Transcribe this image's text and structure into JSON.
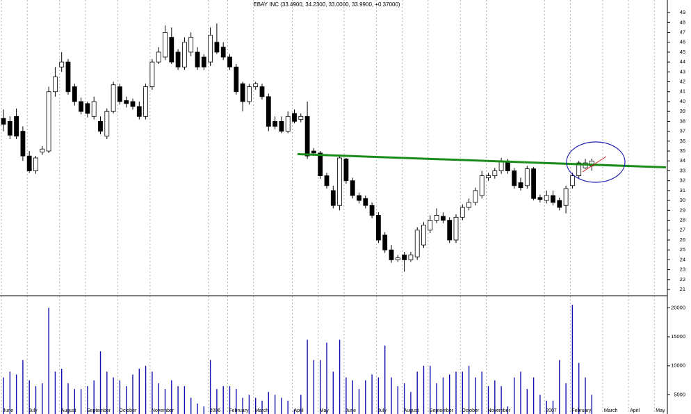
{
  "chart_data": [
    {
      "type": "candlestick",
      "title": "EBAY INC (33.4900, 34.2300, 33.0000, 33.9900, +0.37000)",
      "categories": [
        "June",
        null,
        null,
        null,
        "July",
        null,
        null,
        null,
        null,
        "August",
        null,
        null,
        null,
        "September",
        null,
        null,
        null,
        null,
        "October",
        null,
        null,
        null,
        null,
        "November",
        null,
        null,
        null,
        null,
        null,
        null,
        null,
        null,
        "2006",
        null,
        null,
        "February",
        null,
        null,
        null,
        "March",
        null,
        null,
        null,
        null,
        null,
        "April",
        null,
        null,
        null,
        "May",
        null,
        null,
        null,
        "June",
        null,
        null,
        null,
        null,
        "July",
        null,
        null,
        null,
        "August",
        null,
        null,
        null,
        "September",
        null,
        null,
        null,
        null,
        "October",
        null,
        null,
        null,
        "November",
        null,
        null,
        null,
        null,
        null,
        null,
        null,
        null,
        "2007",
        null,
        null,
        null,
        "February",
        null,
        null,
        null,
        null,
        "March",
        null,
        null,
        null,
        "April",
        null,
        null,
        null,
        "May"
      ],
      "open": [
        38.3,
        38,
        38.5,
        37,
        34.5,
        33,
        34.9,
        35,
        41,
        43.5,
        44,
        41.5,
        40,
        39.8,
        38.5,
        38,
        36.5,
        39,
        41.5,
        40.1,
        40,
        39.5,
        38.5,
        41.5,
        44,
        44.5,
        46.5,
        45,
        43.5,
        45,
        45,
        44.5,
        44,
        46,
        45.5,
        44.5,
        43.5,
        41.8,
        40,
        41.5,
        41.5,
        40.5,
        38,
        38,
        37,
        38.8,
        38.2,
        38.5,
        35,
        34.8,
        32.5,
        31,
        29.5,
        34.2,
        32,
        30.5,
        30.2,
        29.5,
        28.5,
        26.5,
        25,
        24,
        24.5,
        24,
        24.3,
        25.5,
        27,
        28,
        28.4,
        28,
        26,
        28.3,
        29.3,
        29.8,
        30.5,
        32.3,
        32.5,
        33,
        34,
        33,
        31.8,
        31.5,
        33.2,
        30.3,
        30,
        30.5,
        30,
        29.5,
        31.5,
        32.5,
        33.3,
        33.49,
        null,
        null,
        null,
        null,
        null,
        null,
        null,
        null,
        null,
        null
      ],
      "high": [
        39.2,
        38.5,
        39.3,
        37.5,
        35,
        34.5,
        35.5,
        41.5,
        43.5,
        45,
        44.3,
        41.8,
        40.4,
        40,
        40.5,
        38.5,
        39.3,
        42,
        41.8,
        40.5,
        40.3,
        40,
        41.8,
        44.3,
        45.5,
        47.7,
        47.5,
        45.3,
        46.5,
        47,
        45.5,
        44.8,
        47.5,
        47.9,
        46,
        44.8,
        43.8,
        42,
        41.8,
        42,
        41.8,
        40.8,
        38.5,
        38.5,
        39,
        39.2,
        38.8,
        40,
        35.3,
        35,
        32.8,
        31.5,
        34.5,
        34.3,
        32.3,
        30.8,
        30.5,
        29.8,
        28.8,
        26.8,
        25.5,
        24.5,
        24.8,
        24.8,
        27.3,
        27.8,
        28.5,
        29.2,
        28.8,
        28.3,
        28.6,
        29.6,
        30.2,
        31.3,
        33,
        32.8,
        33.3,
        34.3,
        34.2,
        33.3,
        32.3,
        33.5,
        33.4,
        30.6,
        31,
        31,
        30.3,
        31.5,
        32.8,
        34,
        34.2,
        34.23,
        null,
        null,
        null,
        null,
        null,
        null,
        null,
        null,
        null,
        null
      ],
      "low": [
        37,
        36.2,
        36.2,
        34,
        32.8,
        32.7,
        34.6,
        34.8,
        40.5,
        43,
        40.7,
        39.6,
        38.7,
        38.4,
        38.2,
        36.7,
        36.2,
        38.8,
        39.7,
        39.4,
        39.2,
        38.2,
        38.2,
        41.2,
        43.8,
        44.2,
        43.8,
        43.2,
        43.2,
        44.6,
        43.2,
        43.2,
        43.6,
        44.8,
        44.2,
        43.2,
        40.7,
        39,
        39.7,
        41.2,
        40.2,
        37,
        37.2,
        36.8,
        36.8,
        37.8,
        37.9,
        34.2,
        34.5,
        32.2,
        31.2,
        29.2,
        29,
        31.7,
        30.2,
        29.7,
        29.2,
        28.2,
        25.7,
        24.7,
        23.7,
        23.8,
        22.8,
        23.8,
        24,
        25.2,
        26.7,
        27.7,
        27.7,
        25.7,
        25.7,
        28,
        29,
        29.5,
        30.2,
        32,
        32.2,
        32.7,
        32.7,
        31.2,
        31,
        31.2,
        30,
        29.8,
        29.7,
        29.5,
        29,
        28.7,
        31.2,
        32.2,
        33.2,
        33,
        null,
        null,
        null,
        null,
        null,
        null,
        null,
        null,
        null,
        null
      ],
      "close": [
        37.7,
        36.6,
        36.5,
        34.5,
        33,
        34.3,
        35.2,
        41,
        42.5,
        44,
        41,
        40,
        39,
        38.8,
        40,
        37,
        39,
        41.7,
        40,
        39.8,
        39.5,
        38.5,
        41.5,
        44,
        45,
        47,
        44,
        43.5,
        46,
        46.5,
        43.5,
        43.5,
        46.7,
        45,
        44.5,
        43.5,
        41,
        40,
        41.5,
        41.8,
        40.5,
        37.5,
        37.5,
        37,
        38.5,
        38,
        38.5,
        34.5,
        34.8,
        32.5,
        31.5,
        29.5,
        34.3,
        32,
        30.5,
        30,
        29.5,
        28.5,
        26,
        25,
        24,
        24.2,
        24,
        24.5,
        27,
        27.5,
        28,
        28.5,
        28,
        26,
        28.3,
        29.3,
        29.8,
        31,
        32.5,
        32.5,
        33,
        34,
        33,
        31.5,
        31.3,
        33.2,
        30.2,
        30.1,
        30.5,
        29.8,
        29.3,
        31.2,
        32.5,
        33.8,
        33.8,
        33.99,
        null,
        null,
        null,
        null,
        null,
        null,
        null,
        null,
        null,
        null
      ],
      "up_color": "#ffffff",
      "down_color": "#000000",
      "ylim": [
        20.37,
        50.27
      ],
      "yticks": [
        21,
        22,
        23,
        24,
        25,
        26,
        27,
        28,
        29,
        30,
        31,
        32,
        33,
        34,
        35,
        36,
        37,
        38,
        39,
        40,
        41,
        42,
        43,
        44,
        45,
        46,
        47,
        48,
        49
      ],
      "grid": true
    },
    {
      "type": "bar",
      "values": [
        8000,
        9000,
        8500,
        11000,
        7500,
        6500,
        7000,
        20000,
        9000,
        9500,
        7000,
        6000,
        6000,
        6500,
        7500,
        12500,
        9000,
        8000,
        7500,
        6500,
        8500,
        9500,
        10000,
        9000,
        7000,
        6000,
        7500,
        6500,
        6500,
        4500,
        3500,
        3000,
        11000,
        6000,
        6500,
        6500,
        6000,
        4500,
        5000,
        4500,
        4000,
        5500,
        5000,
        4500,
        4000,
        2500,
        5000,
        14500,
        11000,
        11000,
        14000,
        9000,
        14500,
        8000,
        7500,
        6000,
        7500,
        8500,
        8000,
        13500,
        8000,
        6500,
        7000,
        5500,
        9000,
        10000,
        10000,
        7000,
        8000,
        8500,
        9000,
        9000,
        10000,
        8000,
        9000,
        6500,
        7500,
        6500,
        3000,
        8000,
        9000,
        6000,
        8000,
        5000,
        4000,
        4000,
        11000,
        7000,
        20500,
        10500,
        8000,
        5000,
        null,
        null,
        null,
        null,
        null,
        null,
        null,
        null,
        null,
        null
      ],
      "color": "#1010b0",
      "ylim": [
        1700,
        22080
      ],
      "yticks": [
        5000,
        10000,
        15000,
        20000
      ]
    }
  ]
}
